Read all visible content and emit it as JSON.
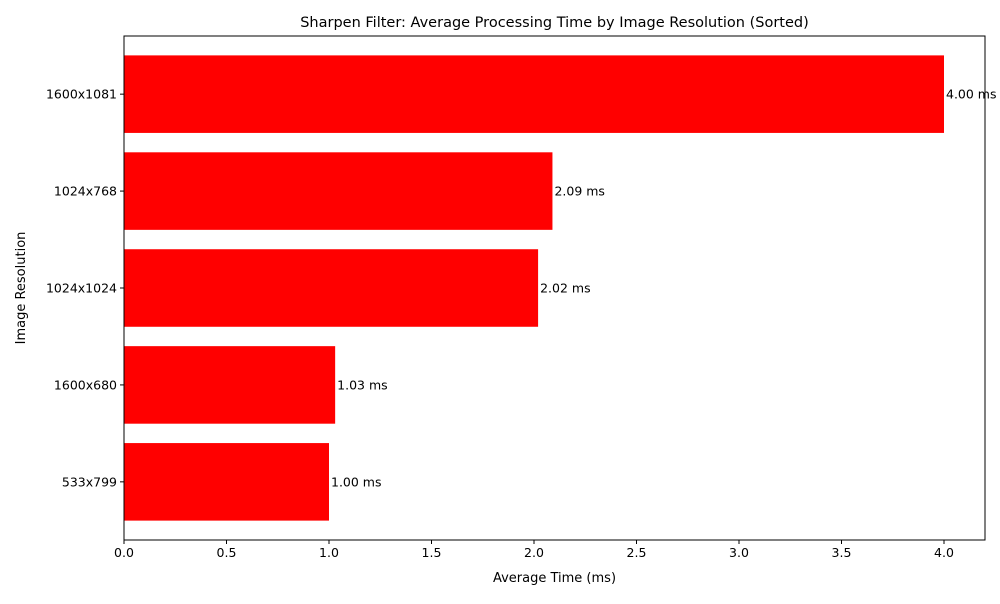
{
  "chart_data": {
    "type": "bar",
    "orientation": "horizontal",
    "title": "Sharpen Filter: Average Processing Time by Image Resolution (Sorted)",
    "xlabel": "Average Time (ms)",
    "ylabel": "Image Resolution",
    "categories": [
      "533x799",
      "1600x680",
      "1024x1024",
      "1024x768",
      "1600x1081"
    ],
    "values": [
      1.0,
      1.03,
      2.02,
      2.09,
      4.0
    ],
    "value_labels": [
      "1.00 ms",
      "1.03 ms",
      "2.02 ms",
      "2.09 ms",
      "4.00 ms"
    ],
    "xlim": [
      0,
      4.2
    ],
    "xticks": [
      0.0,
      0.5,
      1.0,
      1.5,
      2.0,
      2.5,
      3.0,
      3.5,
      4.0
    ],
    "xtick_labels": [
      "0.0",
      "0.5",
      "1.0",
      "1.5",
      "2.0",
      "2.5",
      "3.0",
      "3.5",
      "4.0"
    ],
    "bar_color": "#ff0000",
    "grid": false,
    "legend": "none"
  }
}
